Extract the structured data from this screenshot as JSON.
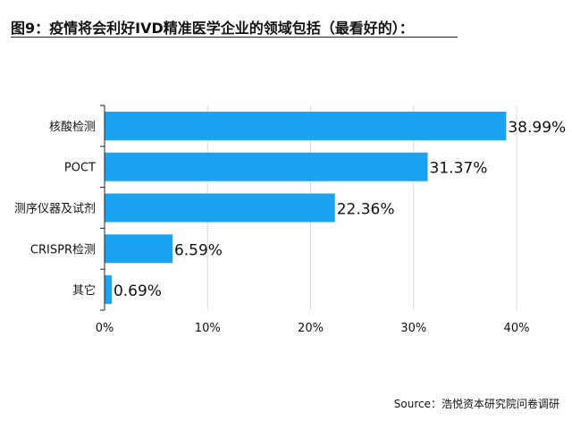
{
  "title": "图9：疫情将会利好IVD精准医学企业的领域包括（最看好的）：",
  "source_label": "Source：",
  "source_text": "浩悦资本研究院问卷调研",
  "colors": {
    "bar": "#1aa3f0",
    "grid": "#d8d8d8",
    "axis": "#222222",
    "text": "#111111"
  },
  "chart_data": {
    "type": "bar",
    "orientation": "horizontal",
    "categories": [
      "核酸检测",
      "POCT",
      "测序仪器及试剂",
      "CRISPR检测",
      "其它"
    ],
    "values": [
      38.99,
      31.37,
      22.36,
      6.59,
      0.69
    ],
    "value_labels": [
      "38.99%",
      "31.37%",
      "22.36%",
      "6.59%",
      "0.69%"
    ],
    "xticks": [
      0,
      10,
      20,
      30,
      40
    ],
    "xtick_labels": [
      "0%",
      "10%",
      "20%",
      "30%",
      "40%"
    ],
    "xlim": [
      0,
      40
    ],
    "grid": true,
    "title": "图9：疫情将会利好IVD精准医学企业的领域包括（最看好的）：",
    "xlabel": "",
    "ylabel": ""
  }
}
